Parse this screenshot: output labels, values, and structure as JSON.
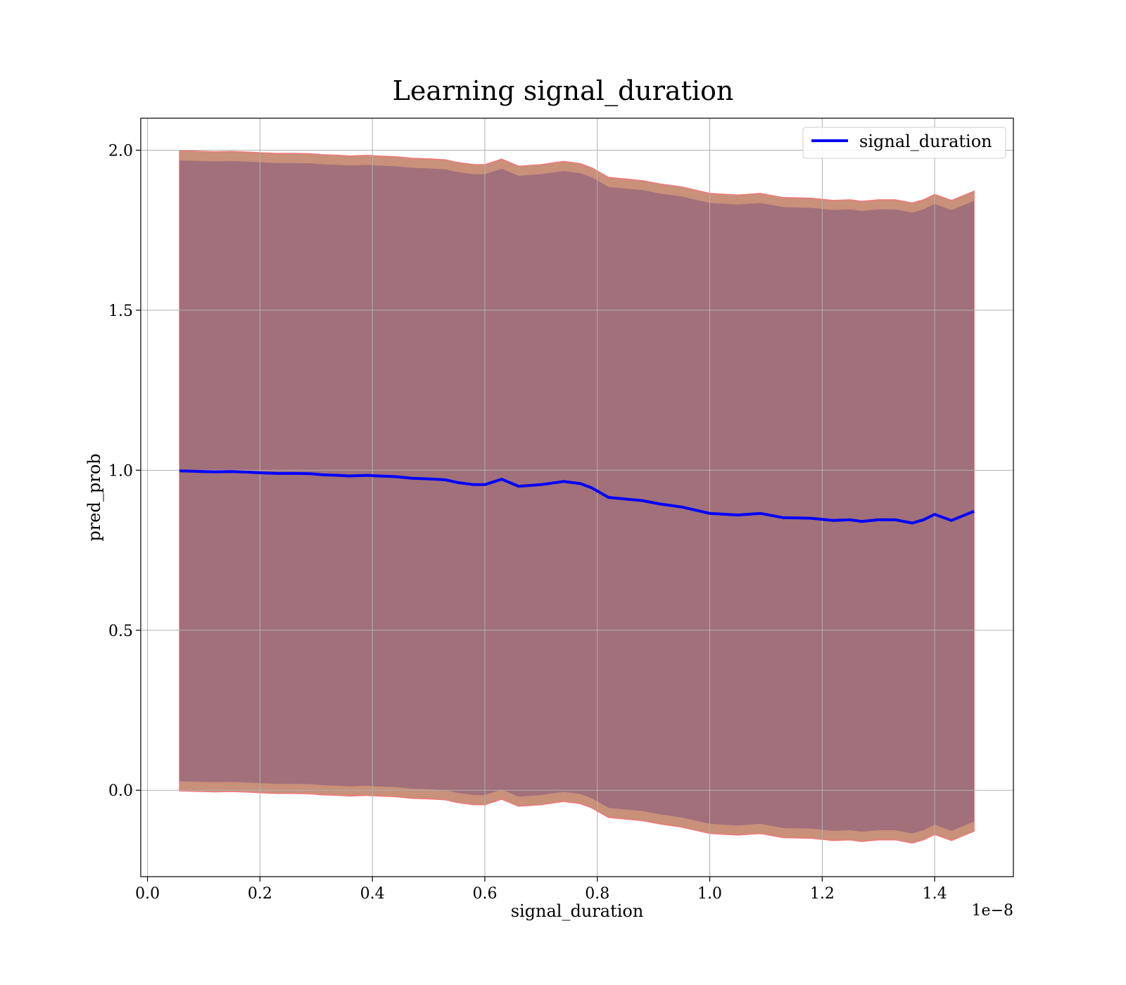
{
  "chart_data": {
    "type": "line",
    "title": "Learning signal_duration",
    "xlabel": "signal_duration",
    "ylabel": "pred_prob",
    "x_offset_label": "1e−8",
    "xlim": [
      -0.012,
      1.54
    ],
    "ylim": [
      -0.27,
      2.1
    ],
    "x_ticks": [
      0.0,
      0.2,
      0.4,
      0.6,
      0.8,
      1.0,
      1.2,
      1.4
    ],
    "x_tick_labels": [
      "0.0",
      "0.2",
      "0.4",
      "0.6",
      "0.8",
      "1.0",
      "1.2",
      "1.4"
    ],
    "y_ticks": [
      0.0,
      0.5,
      1.0,
      1.5,
      2.0
    ],
    "y_tick_labels": [
      "0.0",
      "0.5",
      "1.0",
      "1.5",
      "2.0"
    ],
    "grid": true,
    "legend_position": "top-right",
    "series": [
      {
        "name": "signal_duration",
        "color": "#0000ff",
        "x": [
          0.057,
          0.08,
          0.1,
          0.12,
          0.15,
          0.18,
          0.2,
          0.23,
          0.26,
          0.29,
          0.31,
          0.34,
          0.36,
          0.39,
          0.41,
          0.44,
          0.47,
          0.5,
          0.53,
          0.55,
          0.58,
          0.6,
          0.63,
          0.66,
          0.7,
          0.74,
          0.77,
          0.79,
          0.82,
          0.85,
          0.88,
          0.91,
          0.95,
          1.0,
          1.05,
          1.09,
          1.13,
          1.18,
          1.22,
          1.25,
          1.27,
          1.3,
          1.33,
          1.36,
          1.38,
          1.4,
          1.43,
          1.47
        ],
        "y": [
          0.998,
          0.997,
          0.996,
          0.995,
          0.996,
          0.994,
          0.992,
          0.99,
          0.99,
          0.989,
          0.986,
          0.984,
          0.982,
          0.984,
          0.982,
          0.98,
          0.975,
          0.973,
          0.97,
          0.962,
          0.955,
          0.955,
          0.972,
          0.95,
          0.955,
          0.965,
          0.958,
          0.945,
          0.915,
          0.91,
          0.905,
          0.895,
          0.885,
          0.865,
          0.86,
          0.865,
          0.852,
          0.85,
          0.843,
          0.845,
          0.84,
          0.845,
          0.845,
          0.835,
          0.845,
          0.862,
          0.843,
          0.872
        ],
        "band_inner": 0.97,
        "band_outer": 1.0
      }
    ],
    "band_colors": {
      "inner": "#a1707a",
      "outer": "#c9907a",
      "edge": "#f07878"
    }
  }
}
